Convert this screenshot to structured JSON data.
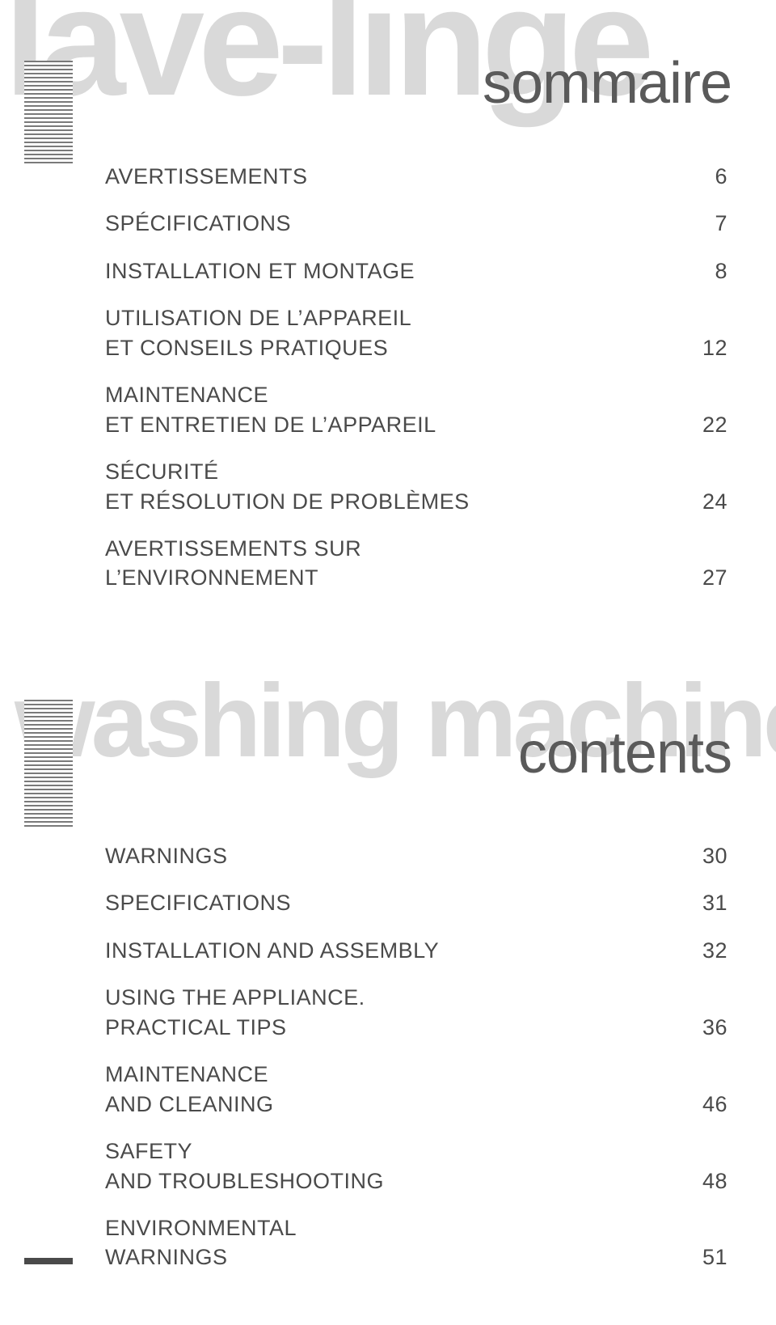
{
  "top": {
    "ghost": "lave-linge",
    "title": "sommaire",
    "items": [
      {
        "label": "AVERTISSEMENTS",
        "page": "6"
      },
      {
        "label": "SPÉCIFICATIONS",
        "page": "7"
      },
      {
        "label": "INSTALLATION ET MONTAGE",
        "page": "8"
      },
      {
        "label": "UTILISATION DE L'APPAREIL\nET CONSEILS PRATIQUES",
        "page": "12"
      },
      {
        "label": "MAINTENANCE\nET ENTRETIEN DE L'APPAREIL",
        "page": "22"
      },
      {
        "label": "SÉCURITÉ\nET RÉSOLUTION DE PROBLÈMES",
        "page": "24"
      },
      {
        "label": "AVERTISSEMENTS SUR\nL'ENVIRONNEMENT",
        "page": "27"
      }
    ]
  },
  "bottom": {
    "ghost": "washing machine",
    "title": "contents",
    "items": [
      {
        "label": "WARNINGS",
        "page": "30"
      },
      {
        "label": "SPECIFICATIONS",
        "page": "31"
      },
      {
        "label": "INSTALLATION AND ASSEMBLY",
        "page": "32"
      },
      {
        "label": "USING THE APPLIANCE.\nPRACTICAL TIPS",
        "page": "36"
      },
      {
        "label": "MAINTENANCE\nAND CLEANING",
        "page": "46"
      },
      {
        "label": "SAFETY\nAND TROUBLESHOOTING",
        "page": "48"
      },
      {
        "label": "ENVIRONMENTAL\nWARNINGS",
        "page": "51"
      }
    ]
  }
}
